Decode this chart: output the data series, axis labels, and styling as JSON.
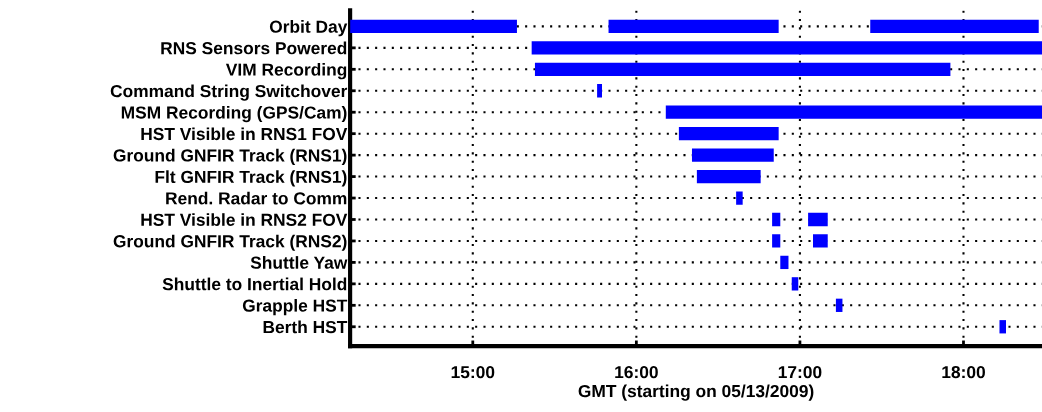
{
  "chart_data": {
    "type": "bar",
    "orientation": "horizontal",
    "categories": [
      "Orbit Day",
      "RNS Sensors Powered",
      "VIM Recording",
      "Command String Switchover",
      "MSM Recording (GPS/Cam)",
      "HST Visible in RNS1 FOV",
      "Ground GNFIR Track (RNS1)",
      "Flt GNFIR Track (RNS1)",
      "Rend. Radar to Comm",
      "HST Visible in RNS2 FOV",
      "Ground GNFIR Track (RNS2)",
      "Shuttle Yaw",
      "Shuttle to Inertial Hold",
      "Grapple HST",
      "Berth HST"
    ],
    "series": [
      {
        "color": "#0000ff",
        "base": [
          14.25,
          15.36,
          15.38,
          15.76,
          16.18,
          16.26,
          16.34,
          16.37,
          16.61,
          16.83,
          16.83,
          16.88,
          16.95,
          17.22,
          18.22
        ],
        "values": [
          1.02,
          3.12,
          2.54,
          0.03,
          2.3,
          0.61,
          0.5,
          0.39,
          0.04,
          0.05,
          0.05,
          0.05,
          0.04,
          0.04,
          0.04
        ]
      },
      {
        "color": "#0000ff",
        "base": [
          15.83,
          null,
          null,
          null,
          null,
          null,
          null,
          null,
          null,
          17.05,
          17.08,
          null,
          null,
          null,
          null
        ],
        "values": [
          1.04,
          null,
          null,
          null,
          null,
          null,
          null,
          null,
          null,
          0.12,
          0.09,
          null,
          null,
          null,
          null
        ]
      },
      {
        "color": "#0000ff",
        "base": [
          17.43,
          null,
          null,
          null,
          null,
          null,
          null,
          null,
          null,
          null,
          null,
          null,
          null,
          null,
          null
        ],
        "values": [
          1.03,
          null,
          null,
          null,
          null,
          null,
          null,
          null,
          null,
          null,
          null,
          null,
          null,
          null,
          null
        ]
      }
    ],
    "xlabel": "GMT (starting on 05/13/2009)",
    "xlim": [
      14.25,
      18.48
    ],
    "xticks": [
      {
        "value": 15,
        "label": "15:00"
      },
      {
        "value": 16,
        "label": "16:00"
      },
      {
        "value": 17,
        "label": "17:00"
      },
      {
        "value": 18,
        "label": "18:00"
      }
    ],
    "grid": true
  }
}
